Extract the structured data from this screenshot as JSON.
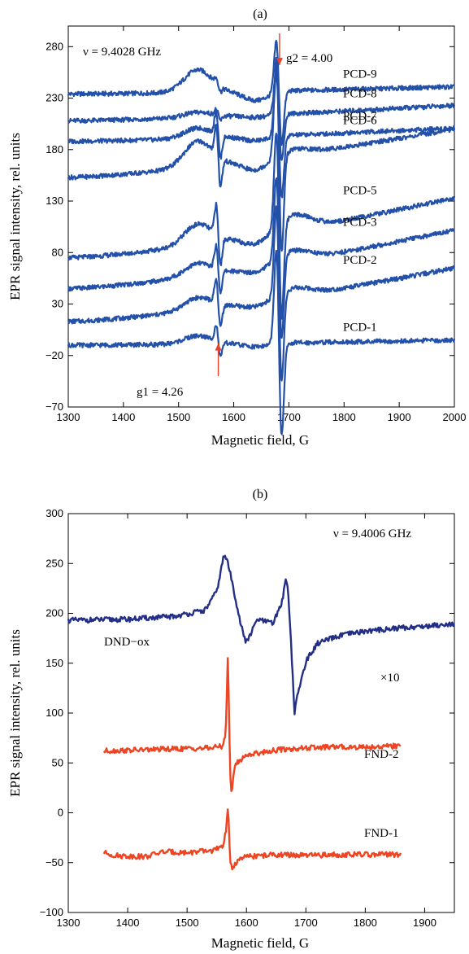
{
  "chart_data": [
    {
      "type": "line",
      "panel_label": "(a)",
      "xlabel": "Magnetic field, G",
      "ylabel": "EPR signal intensity, rel. units",
      "xlim": [
        1300,
        2000
      ],
      "ylim": [
        -70,
        300
      ],
      "xticks": [
        1300,
        1400,
        1500,
        1600,
        1700,
        1800,
        1900,
        2000
      ],
      "yticks": [
        -70,
        -20,
        30,
        80,
        130,
        180,
        230,
        280
      ],
      "grid": false,
      "line_color": "#2350a8",
      "annotations": {
        "frequency": "ν = 9.4028 GHz",
        "g2": "g2 = 4.00",
        "g1": "g1 = 4.26"
      },
      "arrow_color": "#e8402a",
      "markers": [
        {
          "text": "g2 = 4.00",
          "x": 1683,
          "y_start": 293,
          "y_end": 262
        },
        {
          "text": "g1 = 4.26",
          "x": 1572,
          "y_start": -40,
          "y_end": -8
        }
      ],
      "series": [
        {
          "name": "PCD-9",
          "baseline_start": 234,
          "baseline_end": 241,
          "feature1": 5,
          "feature2": -50,
          "hump1530": 22,
          "hump1700": 0
        },
        {
          "name": "PCD-8",
          "baseline_start": 208,
          "baseline_end": 223,
          "feature1": 5,
          "feature2": -45,
          "hump1530": 5,
          "hump1700": 0
        },
        {
          "name": "PCD-7",
          "baseline_start": 188,
          "baseline_end": 201,
          "feature1": 22,
          "feature2": -60,
          "hump1530": 10,
          "hump1700": 0
        },
        {
          "name": "PCD-6",
          "baseline_start": 153,
          "baseline_end": 200,
          "feature1": 28,
          "feature2": -95,
          "hump1530": 25,
          "hump1700": 5
        },
        {
          "name": "PCD-5",
          "baseline_start": 75,
          "baseline_end": 133,
          "feature1": 28,
          "feature2": -92,
          "hump1530": 20,
          "hump1700": 14
        },
        {
          "name": "PCD-3",
          "baseline_start": 45,
          "baseline_end": 102,
          "feature1": 22,
          "feature2": -80,
          "hump1530": 12,
          "hump1700": 10
        },
        {
          "name": "PCD-2",
          "baseline_start": 13,
          "baseline_end": 65,
          "feature1": 22,
          "feature2": -85,
          "hump1530": 12,
          "hump1700": 8
        },
        {
          "name": "PCD-1",
          "baseline_start": -10,
          "baseline_end": -5,
          "feature1": 15,
          "feature2": -90,
          "hump1530": 8,
          "hump1700": 0
        }
      ]
    },
    {
      "type": "line",
      "panel_label": "(b)",
      "xlabel": "Magnetic field, G",
      "ylabel": "EPR signal intensity, rel. units",
      "xlim": [
        1300,
        1950
      ],
      "ylim": [
        -100,
        300
      ],
      "xticks": [
        1300,
        1400,
        1500,
        1600,
        1700,
        1800,
        1900
      ],
      "yticks": [
        -100,
        -50,
        0,
        50,
        100,
        150,
        200,
        250,
        300
      ],
      "grid": false,
      "annotations": {
        "frequency": "ν = 9.4006 GHz",
        "scale": "×10"
      },
      "series": [
        {
          "name": "DND−ox",
          "color": "#232f86",
          "x_range": [
            1300,
            1950
          ],
          "points": [
            [
              1300,
              193
            ],
            [
              1400,
              194
            ],
            [
              1480,
              197
            ],
            [
              1530,
              203
            ],
            [
              1550,
              222
            ],
            [
              1562,
              258
            ],
            [
              1568,
              253
            ],
            [
              1578,
              225
            ],
            [
              1590,
              190
            ],
            [
              1598,
              172
            ],
            [
              1605,
              176
            ],
            [
              1618,
              194
            ],
            [
              1630,
              192
            ],
            [
              1645,
              190
            ],
            [
              1660,
              212
            ],
            [
              1666,
              234
            ],
            [
              1670,
              225
            ],
            [
              1676,
              160
            ],
            [
              1681,
              100
            ],
            [
              1686,
              118
            ],
            [
              1700,
              152
            ],
            [
              1720,
              170
            ],
            [
              1760,
              178
            ],
            [
              1800,
              182
            ],
            [
              1850,
              185
            ],
            [
              1900,
              187
            ],
            [
              1950,
              190
            ]
          ]
        },
        {
          "name": "FND-2",
          "color": "#ee4422",
          "x_range": [
            1360,
            1860
          ],
          "points": [
            [
              1360,
              62
            ],
            [
              1420,
              63
            ],
            [
              1480,
              64
            ],
            [
              1540,
              65
            ],
            [
              1560,
              67
            ],
            [
              1565,
              80
            ],
            [
              1569,
              163
            ],
            [
              1571,
              80
            ],
            [
              1573,
              35
            ],
            [
              1575,
              18
            ],
            [
              1580,
              48
            ],
            [
              1600,
              58
            ],
            [
              1650,
              63
            ],
            [
              1700,
              65
            ],
            [
              1750,
              66
            ],
            [
              1800,
              66
            ],
            [
              1860,
              67
            ]
          ]
        },
        {
          "name": "FND-1",
          "color": "#ee4422",
          "x_range": [
            1360,
            1860
          ],
          "points": [
            [
              1360,
              -40
            ],
            [
              1380,
              -43
            ],
            [
              1430,
              -44
            ],
            [
              1460,
              -39
            ],
            [
              1500,
              -40
            ],
            [
              1540,
              -38
            ],
            [
              1560,
              -35
            ],
            [
              1566,
              -15
            ],
            [
              1569,
              10
            ],
            [
              1571,
              -30
            ],
            [
              1573,
              -52
            ],
            [
              1576,
              -55
            ],
            [
              1585,
              -48
            ],
            [
              1600,
              -44
            ],
            [
              1650,
              -42
            ],
            [
              1700,
              -43
            ],
            [
              1750,
              -42
            ],
            [
              1800,
              -42
            ],
            [
              1860,
              -42
            ]
          ]
        }
      ]
    }
  ]
}
